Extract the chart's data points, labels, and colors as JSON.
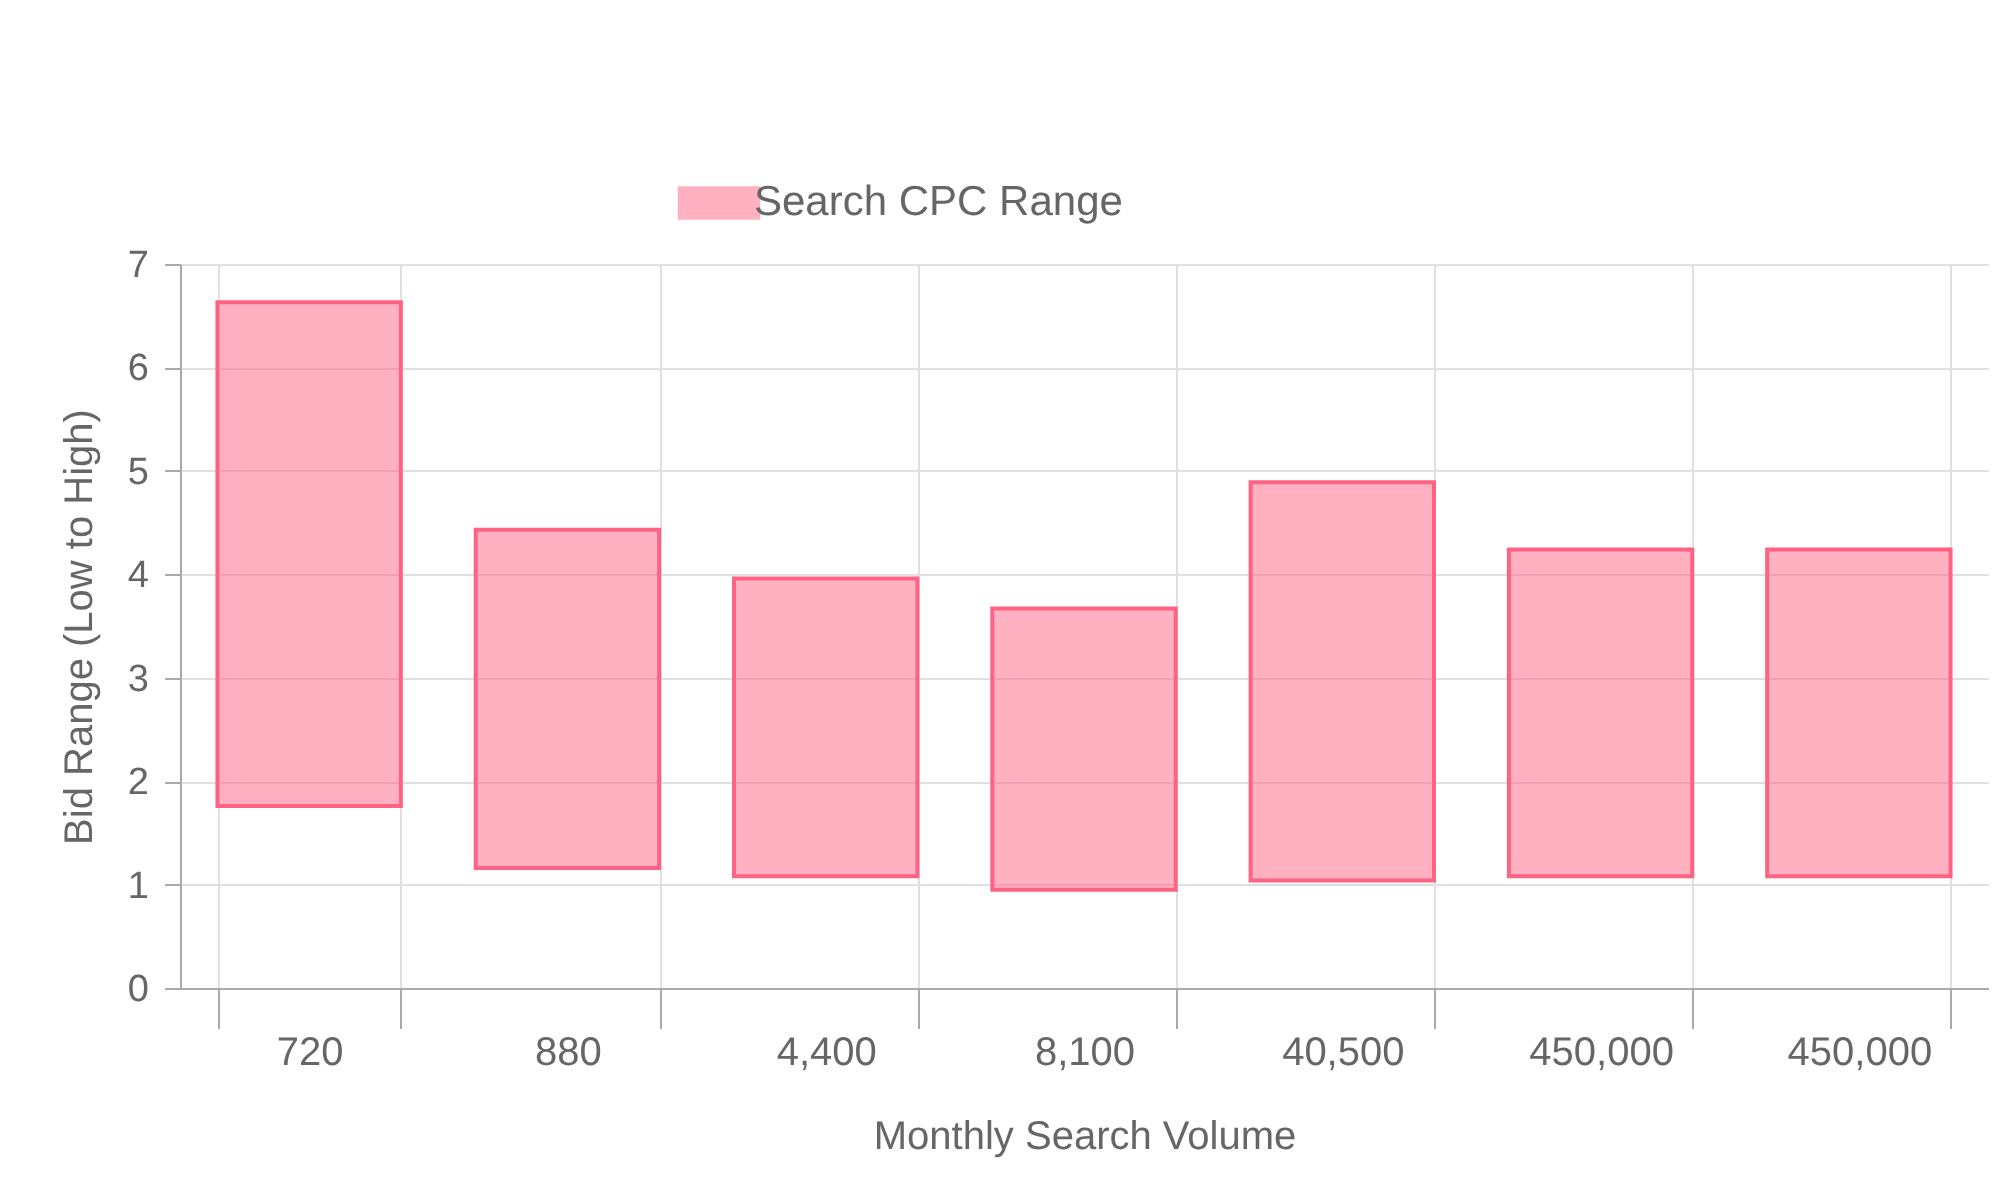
{
  "chart_data": {
    "type": "bar",
    "xlabel": "Monthly Search Volume",
    "ylabel": "Bid Range (Low to High)",
    "categories": [
      "720",
      "880",
      "4,400",
      "8,100",
      "40,500",
      "450,000",
      "450,000"
    ],
    "series": [
      {
        "name": "Search CPC Range",
        "color": "#ff6384",
        "values": [
          4.87,
          3.27,
          2.88,
          2.72,
          3.85,
          3.16,
          3.16
        ],
        "base": [
          1.76,
          1.16,
          1.08,
          0.95,
          1.04,
          1.08,
          1.08
        ]
      }
    ],
    "ylim": [
      0,
      7
    ],
    "yticks": [
      0,
      1,
      2,
      3,
      4,
      5,
      6,
      7
    ],
    "grid": true,
    "legend": "top"
  }
}
